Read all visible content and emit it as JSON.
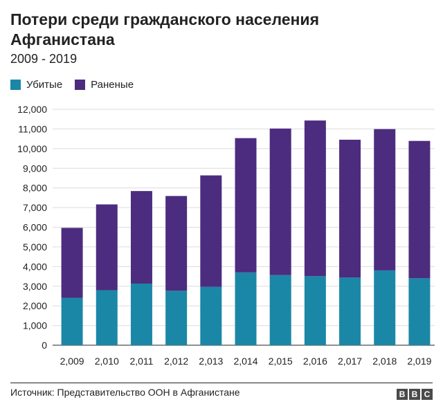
{
  "title": "Потери среди гражданского населения Афганистана",
  "subtitle": "2009 - 2019",
  "legend": {
    "killed": "Убитые",
    "wounded": "Раненые"
  },
  "source": "Источник: Представительство ООН в Афганистане",
  "logo": [
    "B",
    "B",
    "C"
  ],
  "colors": {
    "killed": "#1b87a7",
    "wounded": "#4c2c7f"
  },
  "chart_data": {
    "type": "bar",
    "stacked": true,
    "categories": [
      "2,009",
      "2,010",
      "2,011",
      "2,012",
      "2,013",
      "2,014",
      "2,015",
      "2,016",
      "2,017",
      "2,018",
      "2,019"
    ],
    "series": [
      {
        "name": "Убитые",
        "values": [
          2412,
          2794,
          3133,
          2769,
          2969,
          3701,
          3565,
          3510,
          3438,
          3804,
          3403
        ]
      },
      {
        "name": "Раненые",
        "values": [
          3557,
          4368,
          4709,
          4821,
          5669,
          6833,
          7457,
          7920,
          7015,
          7189,
          6989
        ]
      }
    ],
    "ylim": [
      0,
      12000
    ],
    "yticks": [
      "0",
      "1,000",
      "2,000",
      "3,000",
      "4,000",
      "5,000",
      "6,000",
      "7,000",
      "8,000",
      "9,000",
      "10,000",
      "11,000",
      "12,000"
    ],
    "ytick_values": [
      0,
      1000,
      2000,
      3000,
      4000,
      5000,
      6000,
      7000,
      8000,
      9000,
      10000,
      11000,
      12000
    ],
    "grid": true,
    "legend_position": "top-left"
  }
}
